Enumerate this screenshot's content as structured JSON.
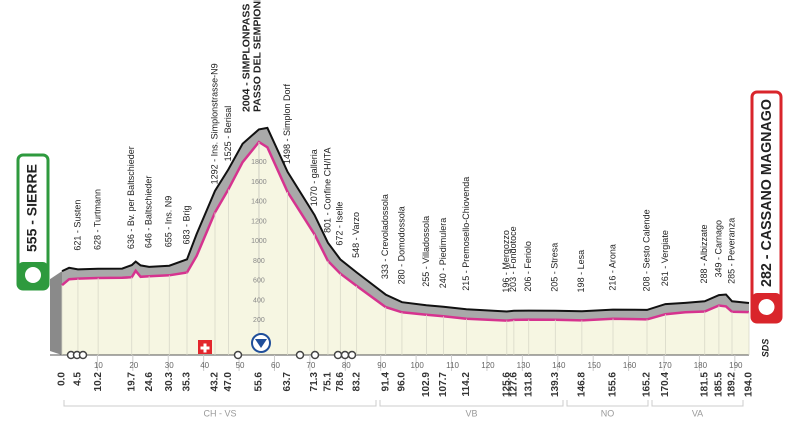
{
  "chart_data": {
    "type": "area",
    "start": {
      "km": {
        "value": 0,
        "label": "0.0"
      },
      "label": "555 - SIERRE"
    },
    "finish": {
      "km": {
        "value": 194,
        "label": "194.0"
      },
      "label": "282 - CASSANO MAGNAGO"
    },
    "waypoints": [
      {
        "km": 4.5,
        "label": "621 - Susten"
      },
      {
        "km": 10.2,
        "label": "628 - Turtmann"
      },
      {
        "km": 19.7,
        "label": "636 - Bv. per Baltschieder"
      },
      {
        "km": 24.6,
        "label": "646 - Baltschieder"
      },
      {
        "km": 30.3,
        "label": "655 - Ins. N9"
      },
      {
        "km": 35.3,
        "label": "683 - Brig"
      },
      {
        "km": 43.2,
        "label": "1292 - Ins. Simplonstrasse-N9"
      },
      {
        "km": {
          "value": 47,
          "label": "47.0"
        },
        "label": "1525 - Berisal"
      },
      {
        "km": 55.6,
        "label": "2004 - SIMPLONPASS",
        "label_2": "PASSO DEL SEMPIONE"
      },
      {
        "km": 63.7,
        "label": "1498 - Simplon Dorf"
      },
      {
        "km": 71.3,
        "label": "1070 - galleria"
      },
      {
        "km": 75.1,
        "label": "801 - Confine CH/ITA"
      },
      {
        "km": 78.6,
        "label": "672 - Iselle"
      },
      {
        "km": 83.2,
        "label": "548 - Varzo"
      },
      {
        "km": 91.4,
        "label": "333 - Crevoladossola"
      },
      {
        "km": {
          "value": 96,
          "label": "96.0"
        },
        "label": "280 - Domodossola"
      },
      {
        "km": 102.9,
        "label": "255 - Villadossola"
      },
      {
        "km": 107.7,
        "label": "240 - Piedimulera"
      },
      {
        "km": 114.2,
        "label": "215 - Premosello-Chiovenda"
      },
      {
        "km": 125.6,
        "label": "196 - Mergozzo"
      },
      {
        "km": 127.6,
        "label": "203 - Fondotoce"
      },
      {
        "km": 131.8,
        "label": "206 - Feriolo"
      },
      {
        "km": 139.3,
        "label": "205 - Stresa"
      },
      {
        "km": 146.8,
        "label": "198 - Lesa"
      },
      {
        "km": 155.6,
        "label": "216 - Arona"
      },
      {
        "km": 165.2,
        "label": "208 - Sesto Calende"
      },
      {
        "km": 170.4,
        "label": "261 - Vergiate"
      },
      {
        "km": 181.5,
        "label": "288 - Albizzate"
      },
      {
        "km": 185.5,
        "label": "349 - Carnago"
      },
      {
        "km": 189.2,
        "label": "285 - Peveranza"
      }
    ],
    "x": [
      0,
      2,
      4.5,
      10.2,
      17,
      19.7,
      20.8,
      22.2,
      24.6,
      30.3,
      35.3,
      38,
      43.2,
      47,
      51,
      55.6,
      58,
      63.7,
      71.3,
      75.1,
      78.6,
      83.2,
      91.4,
      96,
      102.9,
      107.7,
      114.2,
      125.6,
      127.6,
      131.8,
      139.3,
      146.8,
      155.6,
      165.2,
      170.4,
      176,
      181.5,
      185.5,
      187.5,
      189.2,
      194
    ],
    "values": [
      555,
      615,
      621,
      628,
      630,
      636,
      700,
      640,
      646,
      655,
      683,
      850,
      1292,
      1525,
      1800,
      2004,
      1950,
      1498,
      1070,
      801,
      672,
      548,
      333,
      280,
      255,
      240,
      215,
      196,
      203,
      206,
      205,
      198,
      216,
      208,
      261,
      280,
      288,
      349,
      340,
      285,
      282
    ],
    "color": "#d6338f",
    "xlim": [
      0,
      194
    ],
    "ylim": [
      0,
      2500
    ],
    "xticks": [
      10,
      20,
      30,
      40,
      50,
      60,
      70,
      80,
      90,
      100,
      110,
      120,
      130,
      140,
      150,
      160,
      170,
      180,
      190
    ],
    "yticks": [
      200,
      400,
      600,
      800,
      1000,
      1200,
      1400,
      1600,
      1800
    ],
    "regions": [
      "CH - VS",
      "VB",
      "NO",
      "VA"
    ],
    "logo": "SDS"
  }
}
